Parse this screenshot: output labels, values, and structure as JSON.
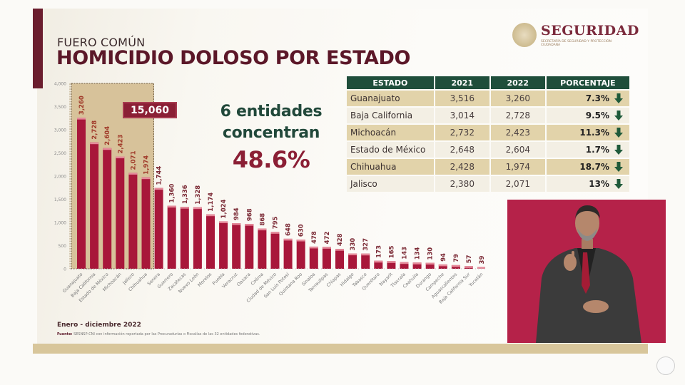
{
  "header": {
    "subtitle": "FUERO COMÚN",
    "title": "HOMICIDIO DOLOSO POR ESTADO"
  },
  "logo": {
    "wordmark": "SEGURIDAD",
    "tagline": "SECRETARÍA DE SEGURIDAD Y PROTECCIÓN CIUDADANA"
  },
  "highlight": {
    "total": "15,060",
    "line1": "6 entidades",
    "line2": "concentran",
    "percent": "48.6%"
  },
  "table": {
    "headers": [
      "ESTADO",
      "2021",
      "2022",
      "PORCENTAJE"
    ],
    "rows": [
      {
        "estado": "Guanajuato",
        "y2021": "3,516",
        "y2022": "3,260",
        "porcentaje": "7.3%",
        "trend": "down"
      },
      {
        "estado": "Baja California",
        "y2021": "3,014",
        "y2022": "2,728",
        "porcentaje": "9.5%",
        "trend": "down"
      },
      {
        "estado": "Michoacán",
        "y2021": "2,732",
        "y2022": "2,423",
        "porcentaje": "11.3%",
        "trend": "down"
      },
      {
        "estado": "Estado de México",
        "y2021": "2,648",
        "y2022": "2,604",
        "porcentaje": "1.7%",
        "trend": "down"
      },
      {
        "estado": "Chihuahua",
        "y2021": "2,428",
        "y2022": "1,974",
        "porcentaje": "18.7%",
        "trend": "down"
      },
      {
        "estado": "Jalisco",
        "y2021": "2,380",
        "y2022": "2,071",
        "porcentaje": "13%",
        "trend": "down"
      }
    ]
  },
  "footer": {
    "period": "Enero - diciembre 2022",
    "source_label": "Fuente:",
    "source_text": "SESNSP-CNI con información reportada por las Procuradurías o Fiscalías de las 32 entidades federativas."
  },
  "colors": {
    "bar": "#a8173a",
    "bar_top": "#e58a9a",
    "highlight_area": "#d7c29a",
    "header_green": "#1f4e3b",
    "maroon": "#8b1f35",
    "arrow_green": "#1f5a3a"
  },
  "chart_data": {
    "type": "bar",
    "title": "HOMICIDIO DOLOSO POR ESTADO",
    "xlabel": "",
    "ylabel": "",
    "ylim": [
      0,
      4000
    ],
    "yticks": [
      0,
      500,
      1000,
      1500,
      2000,
      2500,
      3000,
      3500,
      4000
    ],
    "ytick_labels": [
      "0",
      "500",
      "1,000",
      "1,500",
      "2,000",
      "2,500",
      "3,000",
      "3,500",
      "4,000"
    ],
    "grid": false,
    "highlighted_count": 6,
    "categories": [
      "Guanajuato",
      "Baja California",
      "Estado de México",
      "Michoacán",
      "Jalisco",
      "Chihuahua",
      "Sonora",
      "Guerrero",
      "Zacatecas",
      "Nuevo León",
      "Morelos",
      "Puebla",
      "Veracruz",
      "Oaxaca",
      "Colima",
      "Ciudad de México",
      "San Luis Potosí",
      "Quintana Roo",
      "Sinaloa",
      "Tamaulipas",
      "Chiapas",
      "Hidalgo",
      "Tabasco",
      "Querétaro",
      "Nayarit",
      "Tlaxcala",
      "Coahuila",
      "Durango",
      "Campeche",
      "Aguascalientes",
      "Baja California Sur",
      "Yucatán"
    ],
    "values": [
      3260,
      2728,
      2604,
      2423,
      2071,
      1974,
      1744,
      1360,
      1336,
      1328,
      1174,
      1024,
      984,
      968,
      868,
      795,
      648,
      630,
      478,
      472,
      428,
      330,
      327,
      173,
      165,
      143,
      134,
      130,
      94,
      79,
      57,
      39
    ],
    "value_labels": [
      "3,260",
      "2,728",
      "2,604",
      "2,423",
      "2,071",
      "1,974",
      "1,744",
      "1,360",
      "1,336",
      "1,328",
      "1,174",
      "1,024",
      "984",
      "968",
      "868",
      "795",
      "648",
      "630",
      "478",
      "472",
      "428",
      "330",
      "327",
      "173",
      "165",
      "143",
      "134",
      "130",
      "94",
      "79",
      "57",
      "39"
    ]
  }
}
